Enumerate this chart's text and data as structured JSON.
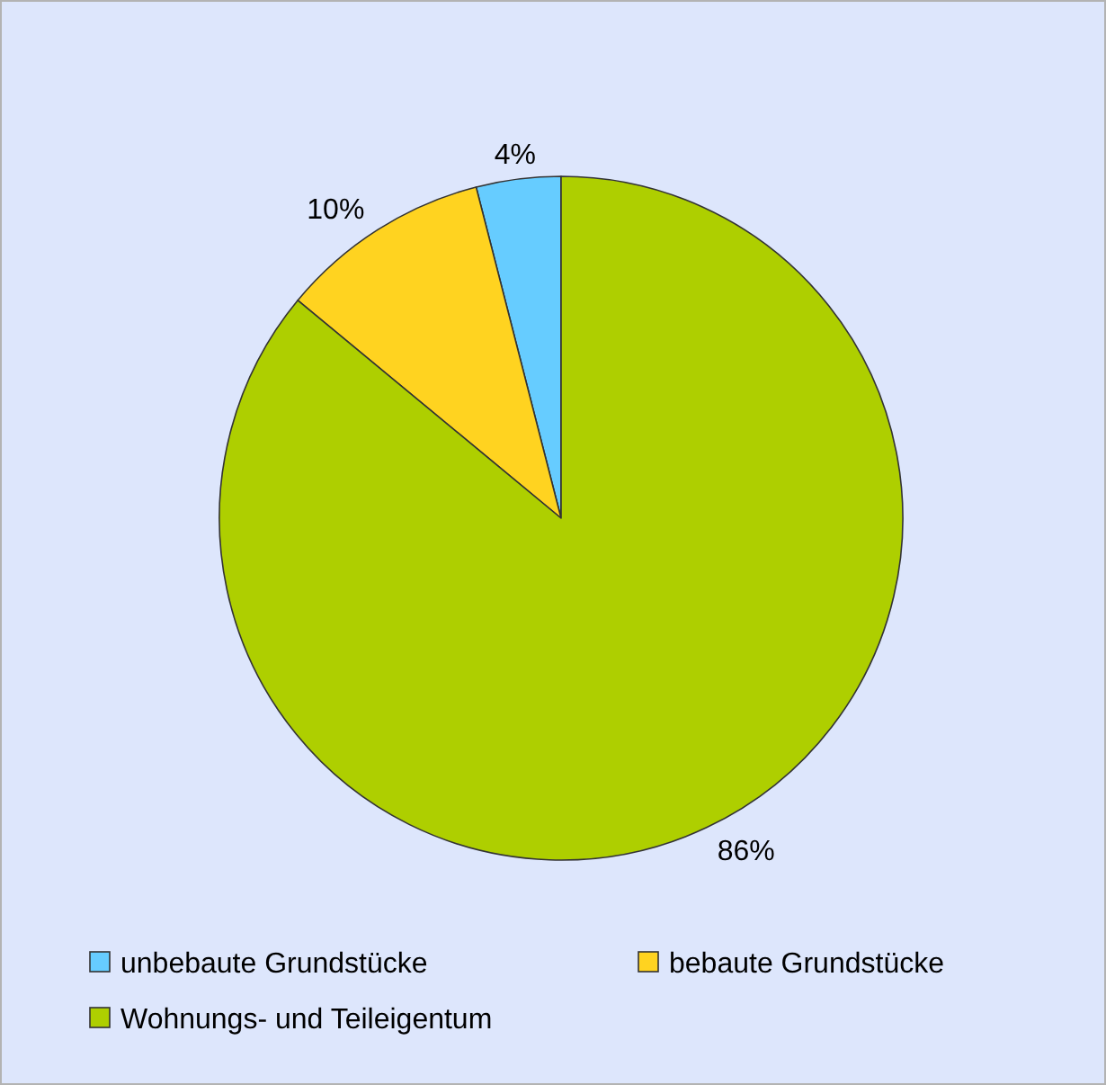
{
  "chart_data": {
    "type": "pie",
    "categories": [
      "unbebaute Grundstücke",
      "bebaute Grundstücke",
      "Wohnungs- und Teileigentum"
    ],
    "values": [
      4,
      10,
      86
    ],
    "colors": [
      "#66ccff",
      "#ffd320",
      "#aecf00"
    ],
    "value_labels": [
      "4%",
      "10%",
      "86%"
    ],
    "legend": "bottom"
  }
}
